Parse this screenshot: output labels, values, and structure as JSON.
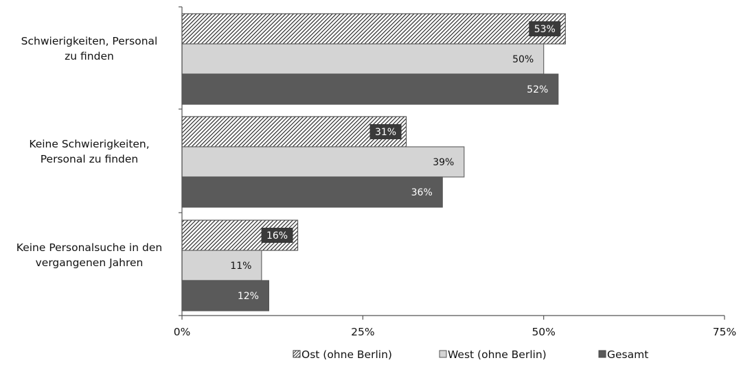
{
  "chart_data": {
    "type": "bar",
    "orientation": "horizontal",
    "categories": [
      [
        "Schwierigkeiten, Personal",
        "zu finden"
      ],
      [
        "Keine Schwierigkeiten,",
        "Personal zu finden"
      ],
      [
        "Keine Personalsuche in den",
        "vergangenen Jahren"
      ]
    ],
    "series": [
      {
        "name": "Ost (ohne Berlin)",
        "values": [
          53,
          31,
          16
        ],
        "labels": [
          "53%",
          "31%",
          "16%"
        ],
        "color": "#ffffff",
        "pattern": "diagonal-hatch"
      },
      {
        "name": "West (ohne Berlin)",
        "values": [
          50,
          39,
          11
        ],
        "labels": [
          "50%",
          "39%",
          "11%"
        ],
        "color": "#d4d4d4"
      },
      {
        "name": "Gesamt",
        "values": [
          52,
          36,
          12
        ],
        "labels": [
          "52%",
          "36%",
          "12%"
        ],
        "color": "#5a5a5a"
      }
    ],
    "xlim": [
      0,
      75
    ],
    "xticks": [
      {
        "value": 0,
        "label": "0%"
      },
      {
        "value": 25,
        "label": "25%"
      },
      {
        "value": 50,
        "label": "50%"
      },
      {
        "value": 75,
        "label": "75%"
      }
    ],
    "grid": false,
    "legend": "bottom",
    "title": "",
    "xlabel": "",
    "ylabel": ""
  }
}
